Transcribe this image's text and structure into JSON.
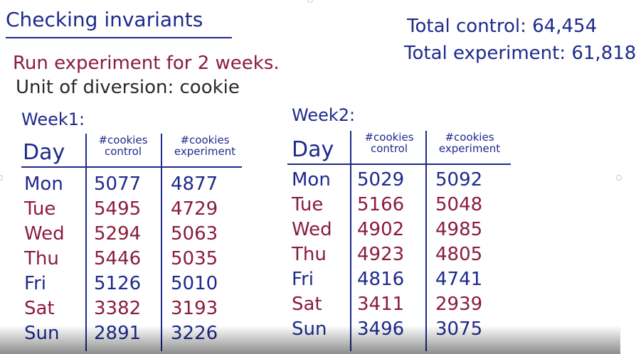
{
  "title": "Checking invariants",
  "totals": {
    "control": "Total control: 64,454",
    "experiment": "Total experiment: 61,818"
  },
  "lines": {
    "run": "Run experiment for 2 weeks.",
    "unit": "Unit of diversion: cookie"
  },
  "weeks": [
    {
      "label": "Week1:",
      "headers": {
        "day": "Day",
        "control": "#cookies control",
        "experiment": "#cookies experiment"
      },
      "rows": [
        {
          "day": "Mon",
          "control": "5077",
          "experiment": "4877"
        },
        {
          "day": "Tue",
          "control": "5495",
          "experiment": "4729"
        },
        {
          "day": "Wed",
          "control": "5294",
          "experiment": "5063"
        },
        {
          "day": "Thu",
          "control": "5446",
          "experiment": "5035"
        },
        {
          "day": "Fri",
          "control": "5126",
          "experiment": "5010"
        },
        {
          "day": "Sat",
          "control": "3382",
          "experiment": "3193"
        },
        {
          "day": "Sun",
          "control": "2891",
          "experiment": "3226"
        }
      ]
    },
    {
      "label": "Week2:",
      "headers": {
        "day": "Day",
        "control": "#cookies control",
        "experiment": "#cookies experiment"
      },
      "rows": [
        {
          "day": "Mon",
          "control": "5029",
          "experiment": "5092"
        },
        {
          "day": "Tue",
          "control": "5166",
          "experiment": "5048"
        },
        {
          "day": "Wed",
          "control": "4902",
          "experiment": "4985"
        },
        {
          "day": "Thu",
          "control": "4923",
          "experiment": "4805"
        },
        {
          "day": "Fri",
          "control": "4816",
          "experiment": "4741"
        },
        {
          "day": "Sat",
          "control": "3411",
          "experiment": "2939"
        },
        {
          "day": "Sun",
          "control": "3496",
          "experiment": "3075"
        }
      ]
    }
  ]
}
